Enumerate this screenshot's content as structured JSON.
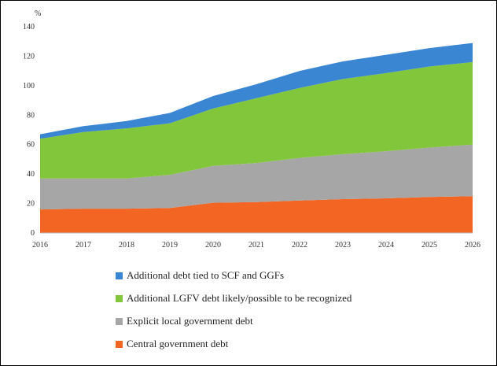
{
  "chart_data": {
    "type": "area",
    "stacked": true,
    "unit_label": "%",
    "x": [
      "2016",
      "2017",
      "2018",
      "2019",
      "2020",
      "2021",
      "2022",
      "2023",
      "2024",
      "2025",
      "2026"
    ],
    "ylim": [
      0,
      140
    ],
    "yticks": [
      0,
      20,
      40,
      60,
      80,
      100,
      120,
      140
    ],
    "grid": false,
    "legend_position": "bottom",
    "series": [
      {
        "name": "Central government debt",
        "color": "#f26522",
        "values": [
          16,
          16.5,
          16.5,
          17,
          20.5,
          21,
          22,
          23,
          23.5,
          24.5,
          25
        ]
      },
      {
        "name": "Explicit local government debt",
        "color": "#a6a6a6",
        "values": [
          21,
          20.5,
          20.5,
          22.5,
          25,
          26.5,
          29,
          30.5,
          32,
          33.5,
          35
        ]
      },
      {
        "name": "Additional LGFV debt likely/possible to be recognized",
        "color": "#82c63c",
        "values": [
          27,
          31.5,
          34,
          35,
          39,
          44,
          47.5,
          51,
          53,
          55,
          56
        ]
      },
      {
        "name": "Additional debt tied to SCF and GGFs",
        "color": "#3a86d3",
        "values": [
          3,
          4,
          5,
          7,
          8.5,
          9.5,
          11.5,
          12,
          12.5,
          12.5,
          13
        ]
      }
    ]
  }
}
